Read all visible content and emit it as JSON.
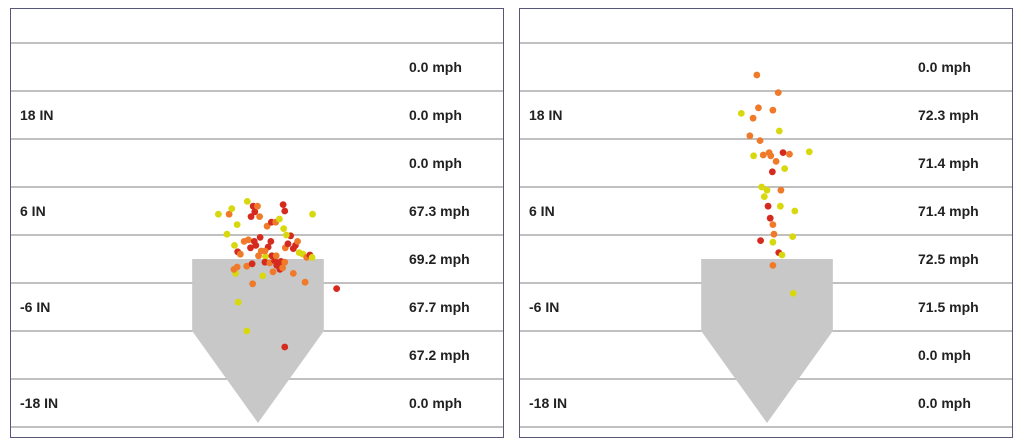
{
  "colors": {
    "hot": "#d42b1e",
    "warm": "#ef7a2a",
    "cool": "#d8d80e",
    "plate": "#c8c8c8",
    "grid": "#9a9a9a",
    "border": "#57577a"
  },
  "chart_data": [
    {
      "type": "scatter",
      "title": "",
      "y_tick_labels": [
        "18 IN",
        "6 IN",
        "-6 IN",
        "-18 IN"
      ],
      "y_tick_values": [
        18,
        6,
        -6,
        -18
      ],
      "ylim": [
        -21,
        30
      ],
      "xlim": [
        -15,
        15
      ],
      "speed_labels": [
        "0.0 mph",
        "0.0 mph",
        "0.0 mph",
        "67.3 mph",
        "69.2 mph",
        "67.7 mph",
        "67.2 mph",
        "0.0 mph"
      ],
      "speed_zone_values": [
        24,
        18,
        12,
        6,
        0,
        -6,
        -12,
        -18
      ],
      "points": [
        {
          "x": -7.4,
          "y": 5.6,
          "c": "cool"
        },
        {
          "x": -5.4,
          "y": 5.6,
          "c": "warm"
        },
        {
          "x": -4.9,
          "y": 6.3,
          "c": "cool"
        },
        {
          "x": -4.4,
          "y": 1.7,
          "c": "cool"
        },
        {
          "x": -5.8,
          "y": 3.1,
          "c": "cool"
        },
        {
          "x": -3.9,
          "y": 4.3,
          "c": "cool"
        },
        {
          "x": -2.0,
          "y": 7.2,
          "c": "cool"
        },
        {
          "x": -1.3,
          "y": 5.3,
          "c": "hot"
        },
        {
          "x": -0.9,
          "y": 6.6,
          "c": "hot"
        },
        {
          "x": -0.6,
          "y": 5.9,
          "c": "hot"
        },
        {
          "x": -0.1,
          "y": 6.6,
          "c": "warm"
        },
        {
          "x": 0.3,
          "y": 5.3,
          "c": "warm"
        },
        {
          "x": 1.7,
          "y": 4.1,
          "c": "warm"
        },
        {
          "x": 2.5,
          "y": 4.6,
          "c": "hot"
        },
        {
          "x": 3.3,
          "y": 4.6,
          "c": "warm"
        },
        {
          "x": 4.0,
          "y": 5.0,
          "c": "cool"
        },
        {
          "x": 4.7,
          "y": 6.8,
          "c": "hot"
        },
        {
          "x": 5.0,
          "y": 6.0,
          "c": "hot"
        },
        {
          "x": 4.8,
          "y": 3.8,
          "c": "cool"
        },
        {
          "x": 6.1,
          "y": 2.9,
          "c": "hot"
        },
        {
          "x": 7.0,
          "y": 1.7,
          "c": "hot"
        },
        {
          "x": 7.4,
          "y": 2.2,
          "c": "warm"
        },
        {
          "x": 7.7,
          "y": 0.8,
          "c": "cool"
        },
        {
          "x": 8.4,
          "y": 0.6,
          "c": "cool"
        },
        {
          "x": 9.1,
          "y": 0.2,
          "c": "warm"
        },
        {
          "x": 9.7,
          "y": 0.5,
          "c": "hot"
        },
        {
          "x": 10.1,
          "y": 0.2,
          "c": "cool"
        },
        {
          "x": 10.2,
          "y": 5.6,
          "c": "cool"
        },
        {
          "x": 14.7,
          "y": -3.7,
          "c": "hot"
        },
        {
          "x": -3.8,
          "y": 0.9,
          "c": "hot"
        },
        {
          "x": -3.3,
          "y": 0.6,
          "c": "warm"
        },
        {
          "x": -2.6,
          "y": 2.2,
          "c": "warm"
        },
        {
          "x": -1.8,
          "y": 2.4,
          "c": "warm"
        },
        {
          "x": -1.4,
          "y": 1.4,
          "c": "hot"
        },
        {
          "x": -0.7,
          "y": 2.2,
          "c": "hot"
        },
        {
          "x": -0.4,
          "y": 1.7,
          "c": "hot"
        },
        {
          "x": 0.4,
          "y": 2.7,
          "c": "hot"
        },
        {
          "x": 0.1,
          "y": 0.4,
          "c": "warm"
        },
        {
          "x": 0.6,
          "y": 1.0,
          "c": "warm"
        },
        {
          "x": 1.4,
          "y": 0.3,
          "c": "cool"
        },
        {
          "x": 1.9,
          "y": 1.5,
          "c": "hot"
        },
        {
          "x": 1.3,
          "y": -0.4,
          "c": "hot"
        },
        {
          "x": 2.2,
          "y": -0.5,
          "c": "warm"
        },
        {
          "x": 2.6,
          "y": 0.4,
          "c": "hot"
        },
        {
          "x": 3.1,
          "y": -0.2,
          "c": "hot"
        },
        {
          "x": 3.4,
          "y": 0.4,
          "c": "warm"
        },
        {
          "x": 3.5,
          "y": -0.8,
          "c": "hot"
        },
        {
          "x": 4.0,
          "y": -0.5,
          "c": "hot"
        },
        {
          "x": 4.1,
          "y": -1.3,
          "c": "hot"
        },
        {
          "x": 4.6,
          "y": -1.1,
          "c": "warm"
        },
        {
          "x": 4.3,
          "y": -0.3,
          "c": "hot"
        },
        {
          "x": 5.0,
          "y": -0.4,
          "c": "warm"
        },
        {
          "x": 5.1,
          "y": 1.4,
          "c": "warm"
        },
        {
          "x": 5.6,
          "y": 1.9,
          "c": "hot"
        },
        {
          "x": 5.3,
          "y": 3.0,
          "c": "cool"
        },
        {
          "x": 6.6,
          "y": 1.3,
          "c": "hot"
        },
        {
          "x": 2.4,
          "y": 2.2,
          "c": "hot"
        },
        {
          "x": -2.1,
          "y": -0.9,
          "c": "warm"
        },
        {
          "x": -3.9,
          "y": -1.0,
          "c": "warm"
        },
        {
          "x": -4.2,
          "y": -1.8,
          "c": "cool"
        },
        {
          "x": -4.5,
          "y": -1.3,
          "c": "warm"
        },
        {
          "x": -1.0,
          "y": -3.1,
          "c": "warm"
        },
        {
          "x": 0.9,
          "y": -2.1,
          "c": "cool"
        },
        {
          "x": 2.8,
          "y": -1.6,
          "c": "warm"
        },
        {
          "x": 6.6,
          "y": -1.8,
          "c": "warm"
        },
        {
          "x": 8.8,
          "y": -2.9,
          "c": "warm"
        },
        {
          "x": -3.7,
          "y": -5.4,
          "c": "cool"
        },
        {
          "x": -2.1,
          "y": -9.0,
          "c": "cool"
        },
        {
          "x": 5.0,
          "y": -11.0,
          "c": "hot"
        },
        {
          "x": -1.1,
          "y": -0.6,
          "c": "hot"
        },
        {
          "x": 1.3,
          "y": 1.0,
          "c": "warm"
        }
      ]
    },
    {
      "type": "scatter",
      "title": "",
      "y_tick_labels": [
        "18 IN",
        "6 IN",
        "-6 IN",
        "-18 IN"
      ],
      "y_tick_values": [
        18,
        6,
        -6,
        -18
      ],
      "ylim": [
        -21,
        30
      ],
      "xlim": [
        -15,
        15
      ],
      "speed_labels": [
        "0.0 mph",
        "72.3 mph",
        "71.4 mph",
        "71.4 mph",
        "72.5 mph",
        "71.5 mph",
        "0.0 mph",
        "0.0 mph"
      ],
      "speed_zone_values": [
        24,
        18,
        12,
        6,
        0,
        -6,
        -12,
        -18
      ],
      "points": [
        {
          "x": -1.9,
          "y": 23.0,
          "c": "warm"
        },
        {
          "x": -1.6,
          "y": 18.9,
          "c": "warm"
        },
        {
          "x": 2.1,
          "y": 20.8,
          "c": "warm"
        },
        {
          "x": 1.1,
          "y": 18.6,
          "c": "warm"
        },
        {
          "x": -2.6,
          "y": 17.6,
          "c": "warm"
        },
        {
          "x": -3.2,
          "y": 15.4,
          "c": "warm"
        },
        {
          "x": -1.3,
          "y": 14.8,
          "c": "warm"
        },
        {
          "x": -4.8,
          "y": 18.2,
          "c": "cool"
        },
        {
          "x": 2.3,
          "y": 16.0,
          "c": "cool"
        },
        {
          "x": -2.5,
          "y": 12.9,
          "c": "cool"
        },
        {
          "x": 0.4,
          "y": 13.3,
          "c": "warm"
        },
        {
          "x": 3.0,
          "y": 13.3,
          "c": "hot"
        },
        {
          "x": 0.7,
          "y": 12.9,
          "c": "warm"
        },
        {
          "x": 4.2,
          "y": 13.1,
          "c": "warm"
        },
        {
          "x": 1.7,
          "y": 12.2,
          "c": "warm"
        },
        {
          "x": 3.3,
          "y": 11.3,
          "c": "cool"
        },
        {
          "x": -0.7,
          "y": 13.0,
          "c": "warm"
        },
        {
          "x": 1.0,
          "y": 10.9,
          "c": "hot"
        },
        {
          "x": 7.9,
          "y": 13.4,
          "c": "cool"
        },
        {
          "x": -1.0,
          "y": 9.0,
          "c": "cool"
        },
        {
          "x": 0.0,
          "y": 8.6,
          "c": "cool"
        },
        {
          "x": 2.6,
          "y": 8.6,
          "c": "warm"
        },
        {
          "x": -0.5,
          "y": 7.8,
          "c": "cool"
        },
        {
          "x": 0.2,
          "y": 6.6,
          "c": "hot"
        },
        {
          "x": 2.5,
          "y": 6.6,
          "c": "cool"
        },
        {
          "x": 5.2,
          "y": 6.0,
          "c": "cool"
        },
        {
          "x": 0.6,
          "y": 5.1,
          "c": "hot"
        },
        {
          "x": 1.1,
          "y": 4.3,
          "c": "warm"
        },
        {
          "x": 1.3,
          "y": 3.1,
          "c": "warm"
        },
        {
          "x": -1.2,
          "y": 2.3,
          "c": "hot"
        },
        {
          "x": 1.1,
          "y": 2.1,
          "c": "cool"
        },
        {
          "x": 4.8,
          "y": 2.8,
          "c": "cool"
        },
        {
          "x": 2.2,
          "y": 0.8,
          "c": "hot"
        },
        {
          "x": 2.8,
          "y": 0.5,
          "c": "cool"
        },
        {
          "x": 1.1,
          "y": -0.8,
          "c": "warm"
        },
        {
          "x": 4.9,
          "y": -4.3,
          "c": "cool"
        }
      ]
    }
  ]
}
